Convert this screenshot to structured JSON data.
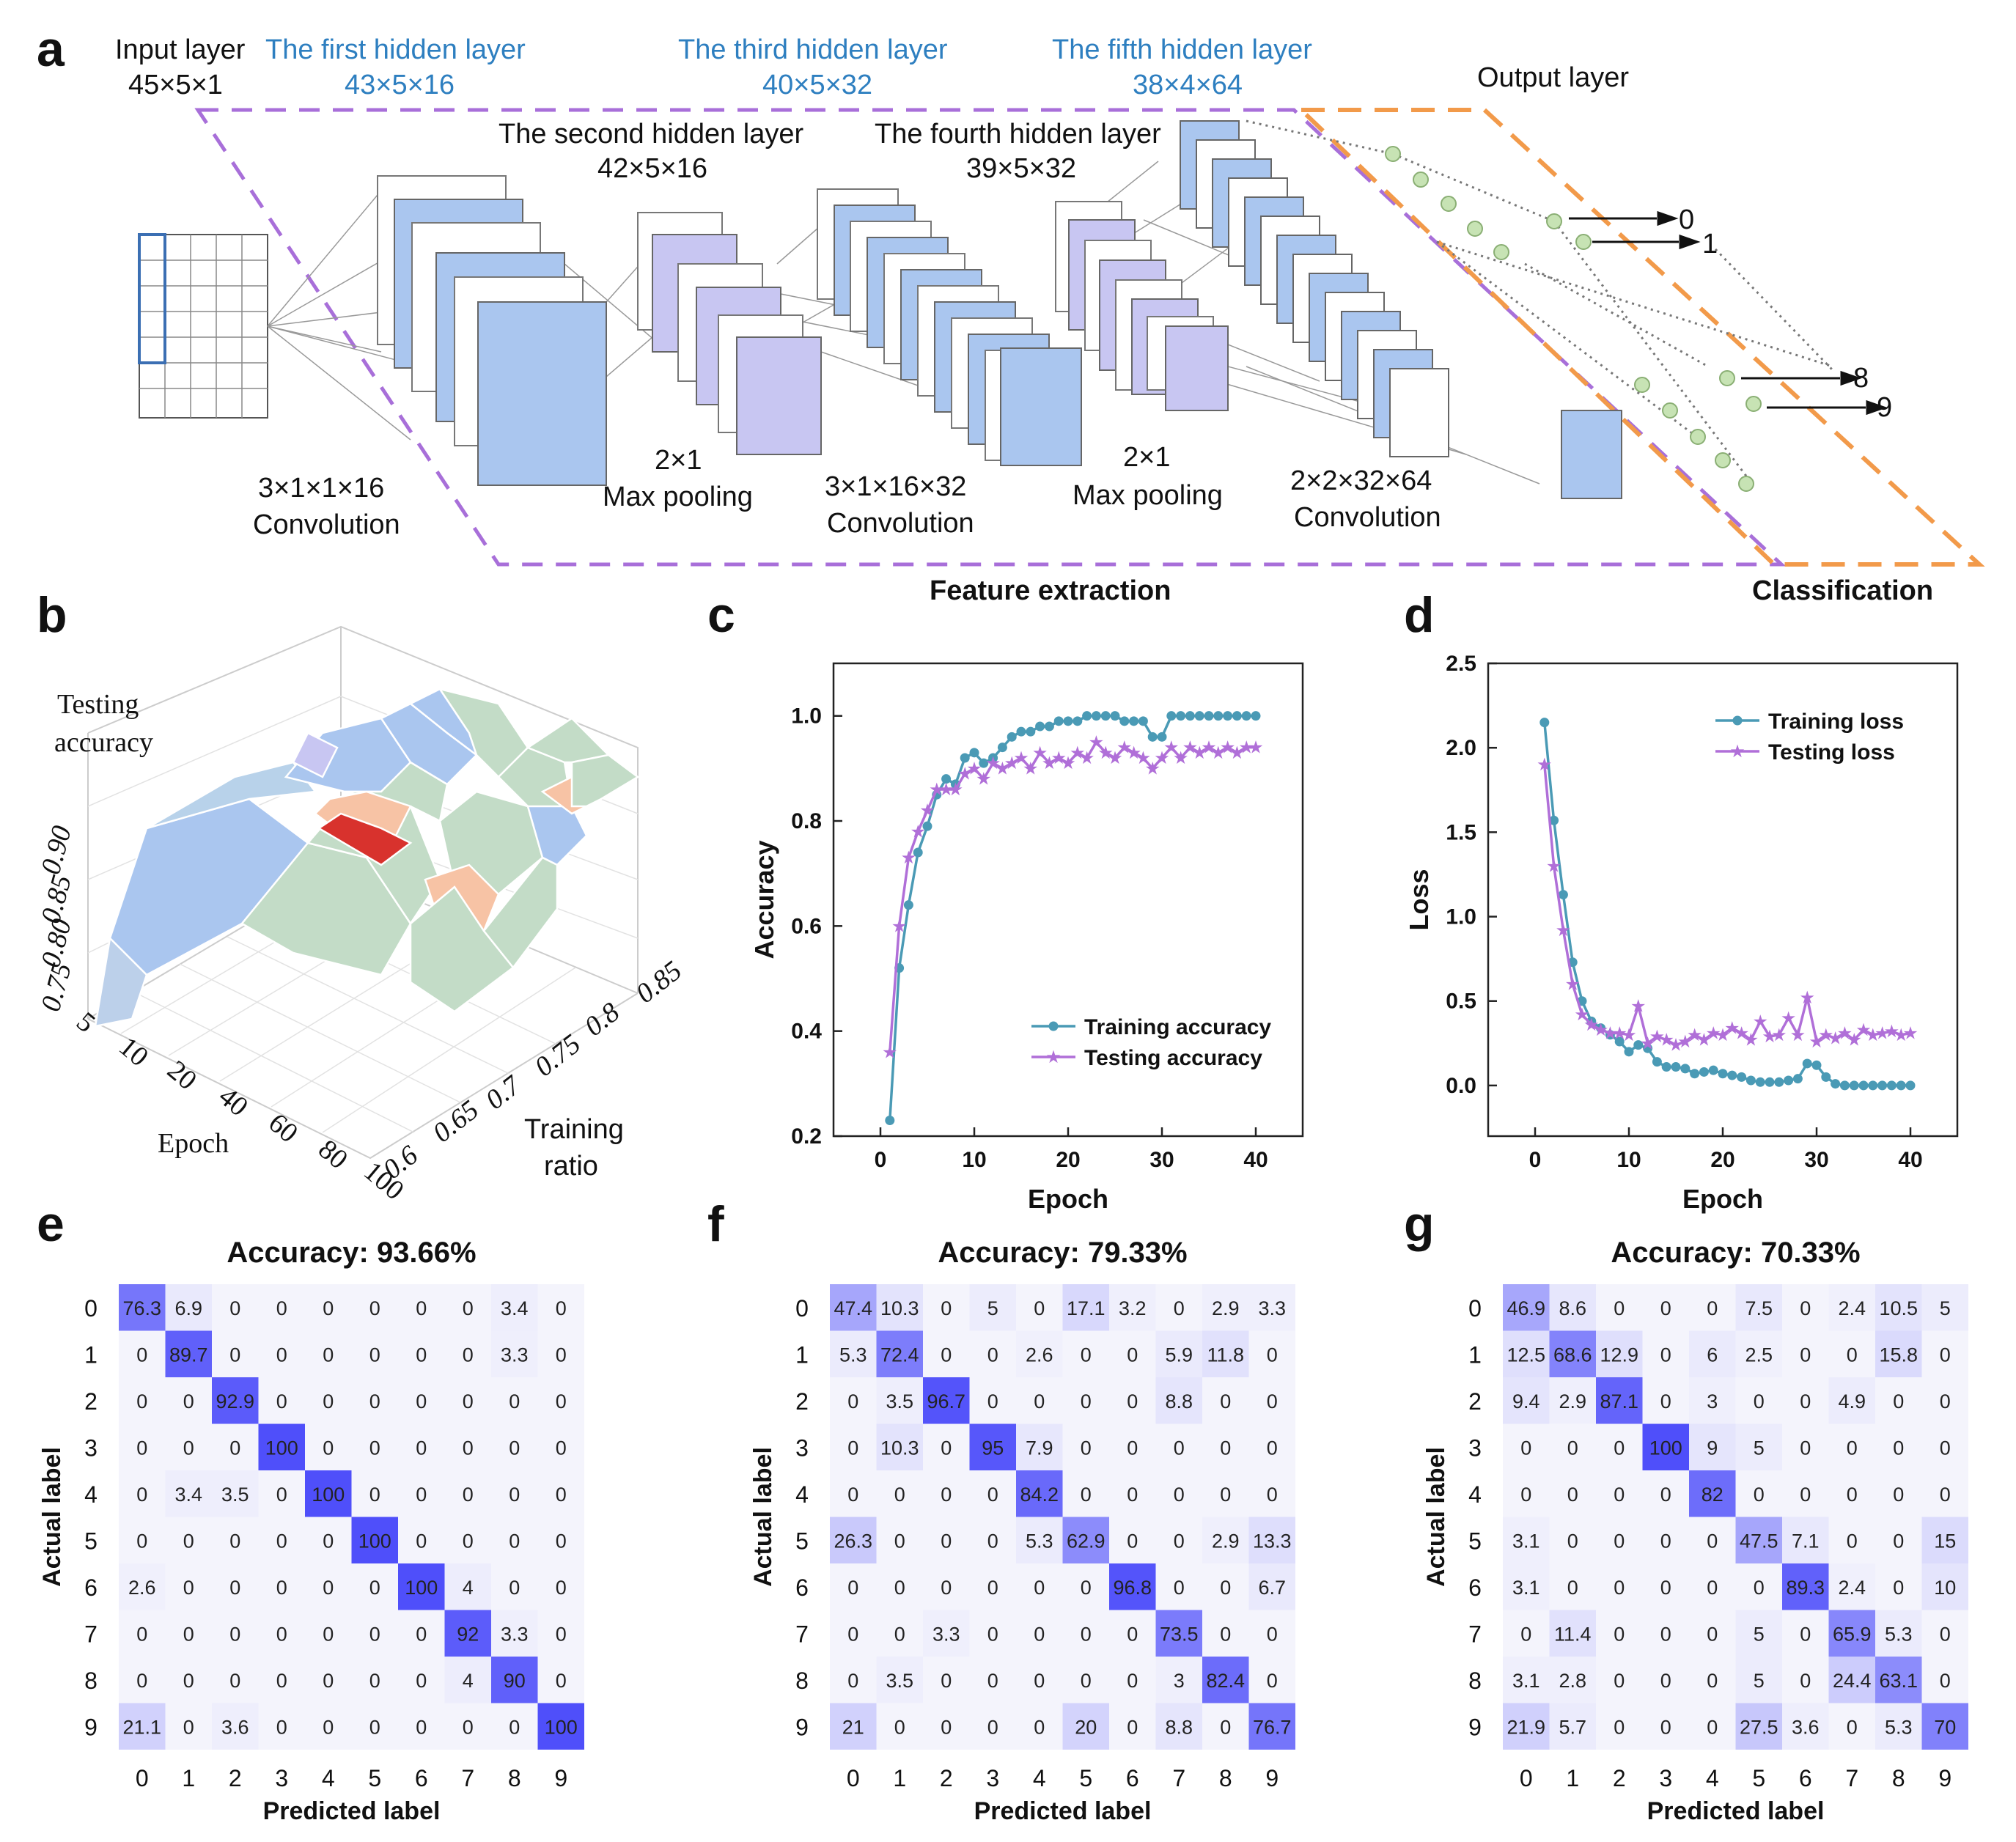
{
  "panel_letters": {
    "a": "a",
    "b": "b",
    "c": "c",
    "d": "d",
    "e": "e",
    "f": "f",
    "g": "g"
  },
  "panel_a": {
    "input_layer": {
      "name": "Input layer",
      "dims": "45×5×1"
    },
    "hidden1": {
      "name": "The first hidden layer",
      "dims": "43×5×16"
    },
    "hidden2": {
      "name": "The second hidden layer",
      "dims": "42×5×16"
    },
    "hidden3": {
      "name": "The third hidden layer",
      "dims": "40×5×32"
    },
    "hidden4": {
      "name": "The fourth hidden layer",
      "dims": "39×5×32"
    },
    "hidden5": {
      "name": "The fifth hidden layer",
      "dims": "38×4×64"
    },
    "output_layer": "Output layer",
    "op1": {
      "kernel": "3×1×1×16",
      "op": "Convolution"
    },
    "op2": {
      "kernel": "2×1",
      "op": "Max pooling"
    },
    "op3": {
      "kernel": "3×1×16×32",
      "op": "Convolution"
    },
    "op4": {
      "kernel": "2×1",
      "op": "Max pooling"
    },
    "op5": {
      "kernel": "2×2×32×64",
      "op": "Convolution"
    },
    "outputs": [
      "0",
      "1",
      "8",
      "9"
    ],
    "feature_extraction": "Feature extraction",
    "classification": "Classification",
    "colors": {
      "blue": "#aac6ef",
      "lavender": "#c8c6f2",
      "purple_dash": "#a86fd9",
      "orange_dash": "#f29a4a",
      "node": "#c7e3b4",
      "accent_text": "#2e7fc0"
    }
  },
  "panel_b": {
    "zlabel_1": "Testing",
    "zlabel_2": "accuracy",
    "z_ticks": [
      "0.90",
      "0.85",
      "0.80",
      "0.75"
    ],
    "x_label": "Epoch",
    "x_ticks": [
      "5",
      "10",
      "20",
      "40",
      "60",
      "80",
      "100"
    ],
    "y_label_1": "Training",
    "y_label_2": "ratio",
    "y_ticks": [
      "0.6",
      "0.65",
      "0.7",
      "0.75",
      "0.8",
      "0.85"
    ]
  },
  "chart_data": [
    {
      "id": "c",
      "type": "line",
      "xlabel": "Epoch",
      "ylabel": "Accuracy",
      "xlim": [
        -5,
        45
      ],
      "ylim": [
        0.2,
        1.1
      ],
      "xticks": [
        0,
        10,
        20,
        30,
        40
      ],
      "yticks": [
        0.2,
        0.4,
        0.6,
        0.8,
        1.0
      ],
      "ytick_labels": [
        "0.2",
        "0.4",
        "0.6",
        "0.8",
        "1.0"
      ],
      "legend_position": "bottom-right",
      "x": [
        1,
        2,
        3,
        4,
        5,
        6,
        7,
        8,
        9,
        10,
        11,
        12,
        13,
        14,
        15,
        16,
        17,
        18,
        19,
        20,
        21,
        22,
        23,
        24,
        25,
        26,
        27,
        28,
        29,
        30,
        31,
        32,
        33,
        34,
        35,
        36,
        37,
        38,
        39,
        40
      ],
      "series": [
        {
          "name": "Training accuracy",
          "color": "#4a9ab5",
          "marker": "circle",
          "values": [
            0.23,
            0.52,
            0.64,
            0.74,
            0.79,
            0.85,
            0.88,
            0.87,
            0.92,
            0.93,
            0.91,
            0.92,
            0.94,
            0.96,
            0.97,
            0.97,
            0.98,
            0.98,
            0.99,
            0.99,
            0.99,
            1.0,
            1.0,
            1.0,
            1.0,
            0.99,
            0.99,
            0.99,
            0.96,
            0.96,
            1.0,
            1.0,
            1.0,
            1.0,
            1.0,
            1.0,
            1.0,
            1.0,
            1.0,
            1.0
          ]
        },
        {
          "name": "Testing accuracy",
          "color": "#b06fd8",
          "marker": "star",
          "values": [
            0.36,
            0.6,
            0.73,
            0.78,
            0.82,
            0.86,
            0.86,
            0.86,
            0.89,
            0.9,
            0.88,
            0.91,
            0.9,
            0.91,
            0.92,
            0.9,
            0.93,
            0.91,
            0.92,
            0.91,
            0.93,
            0.92,
            0.95,
            0.93,
            0.92,
            0.94,
            0.93,
            0.92,
            0.9,
            0.92,
            0.94,
            0.92,
            0.94,
            0.93,
            0.94,
            0.93,
            0.94,
            0.93,
            0.94,
            0.94
          ]
        }
      ]
    },
    {
      "id": "d",
      "type": "line",
      "xlabel": "Epoch",
      "ylabel": "Loss",
      "xlim": [
        -5,
        45
      ],
      "ylim": [
        -0.3,
        2.5
      ],
      "xticks": [
        0,
        10,
        20,
        30,
        40
      ],
      "yticks": [
        0.0,
        0.5,
        1.0,
        1.5,
        2.0,
        2.5
      ],
      "ytick_labels": [
        "0.0",
        "0.5",
        "1.0",
        "1.5",
        "2.0",
        "2.5"
      ],
      "legend_position": "top-right",
      "x": [
        1,
        2,
        3,
        4,
        5,
        6,
        7,
        8,
        9,
        10,
        11,
        12,
        13,
        14,
        15,
        16,
        17,
        18,
        19,
        20,
        21,
        22,
        23,
        24,
        25,
        26,
        27,
        28,
        29,
        30,
        31,
        32,
        33,
        34,
        35,
        36,
        37,
        38,
        39,
        40
      ],
      "series": [
        {
          "name": "Training loss",
          "color": "#4a9ab5",
          "marker": "circle",
          "values": [
            2.15,
            1.57,
            1.13,
            0.73,
            0.5,
            0.38,
            0.34,
            0.3,
            0.26,
            0.2,
            0.24,
            0.22,
            0.14,
            0.11,
            0.11,
            0.1,
            0.07,
            0.08,
            0.09,
            0.07,
            0.06,
            0.05,
            0.03,
            0.02,
            0.02,
            0.02,
            0.03,
            0.04,
            0.13,
            0.12,
            0.05,
            0.01,
            0.0,
            0.0,
            0.0,
            0.0,
            0.0,
            0.0,
            0.0,
            0.0
          ]
        },
        {
          "name": "Testing loss",
          "color": "#b06fd8",
          "marker": "star",
          "values": [
            1.9,
            1.3,
            0.92,
            0.6,
            0.42,
            0.36,
            0.33,
            0.31,
            0.31,
            0.3,
            0.47,
            0.25,
            0.29,
            0.27,
            0.24,
            0.26,
            0.3,
            0.27,
            0.31,
            0.3,
            0.34,
            0.31,
            0.27,
            0.38,
            0.29,
            0.3,
            0.4,
            0.3,
            0.52,
            0.26,
            0.3,
            0.28,
            0.31,
            0.27,
            0.33,
            0.3,
            0.31,
            0.32,
            0.3,
            0.31
          ]
        }
      ]
    },
    {
      "id": "e",
      "type": "heatmap",
      "title": "Accuracy: 93.66%",
      "xlabel": "Predicted label",
      "ylabel": "Actual label",
      "labels": [
        "0",
        "1",
        "2",
        "3",
        "4",
        "5",
        "6",
        "7",
        "8",
        "9"
      ],
      "cells": [
        [
          "76.3",
          "6.9",
          "0",
          "0",
          "0",
          "0",
          "0",
          "0",
          "3.4",
          "0"
        ],
        [
          "0",
          "89.7",
          "0",
          "0",
          "0",
          "0",
          "0",
          "0",
          "3.3",
          "0"
        ],
        [
          "0",
          "0",
          "92.9",
          "0",
          "0",
          "0",
          "0",
          "0",
          "0",
          "0"
        ],
        [
          "0",
          "0",
          "0",
          "100",
          "0",
          "0",
          "0",
          "0",
          "0",
          "0"
        ],
        [
          "0",
          "3.4",
          "3.5",
          "0",
          "100",
          "0",
          "0",
          "0",
          "0",
          "0"
        ],
        [
          "0",
          "0",
          "0",
          "0",
          "0",
          "100",
          "0",
          "0",
          "0",
          "0"
        ],
        [
          "2.6",
          "0",
          "0",
          "0",
          "0",
          "0",
          "100",
          "4",
          "0",
          "0"
        ],
        [
          "0",
          "0",
          "0",
          "0",
          "0",
          "0",
          "0",
          "92",
          "3.3",
          "0"
        ],
        [
          "0",
          "0",
          "0",
          "0",
          "0",
          "0",
          "0",
          "4",
          "90",
          "0"
        ],
        [
          "21.1",
          "0",
          "3.6",
          "0",
          "0",
          "0",
          "0",
          "0",
          "0",
          "100"
        ]
      ]
    },
    {
      "id": "f",
      "type": "heatmap",
      "title": "Accuracy: 79.33%",
      "xlabel": "Predicted label",
      "ylabel": "Actual label",
      "labels": [
        "0",
        "1",
        "2",
        "3",
        "4",
        "5",
        "6",
        "7",
        "8",
        "9"
      ],
      "cells": [
        [
          "47.4",
          "10.3",
          "0",
          "5",
          "0",
          "17.1",
          "3.2",
          "0",
          "2.9",
          "3.3"
        ],
        [
          "5.3",
          "72.4",
          "0",
          "0",
          "2.6",
          "0",
          "0",
          "5.9",
          "11.8",
          "0"
        ],
        [
          "0",
          "3.5",
          "96.7",
          "0",
          "0",
          "0",
          "0",
          "8.8",
          "0",
          "0"
        ],
        [
          "0",
          "10.3",
          "0",
          "95",
          "7.9",
          "0",
          "0",
          "0",
          "0",
          "0"
        ],
        [
          "0",
          "0",
          "0",
          "0",
          "84.2",
          "0",
          "0",
          "0",
          "0",
          "0"
        ],
        [
          "26.3",
          "0",
          "0",
          "0",
          "5.3",
          "62.9",
          "0",
          "0",
          "2.9",
          "13.3"
        ],
        [
          "0",
          "0",
          "0",
          "0",
          "0",
          "0",
          "96.8",
          "0",
          "0",
          "6.7"
        ],
        [
          "0",
          "0",
          "3.3",
          "0",
          "0",
          "0",
          "0",
          "73.5",
          "0",
          "0"
        ],
        [
          "0",
          "3.5",
          "0",
          "0",
          "0",
          "0",
          "0",
          "3",
          "82.4",
          "0"
        ],
        [
          "21",
          "0",
          "0",
          "0",
          "0",
          "20",
          "0",
          "8.8",
          "0",
          "76.7"
        ]
      ]
    },
    {
      "id": "g",
      "type": "heatmap",
      "title": "Accuracy: 70.33%",
      "xlabel": "Predicted label",
      "ylabel": "Actual label",
      "labels": [
        "0",
        "1",
        "2",
        "3",
        "4",
        "5",
        "6",
        "7",
        "8",
        "9"
      ],
      "cells": [
        [
          "46.9",
          "8.6",
          "0",
          "0",
          "0",
          "7.5",
          "0",
          "2.4",
          "10.5",
          "5"
        ],
        [
          "12.5",
          "68.6",
          "12.9",
          "0",
          "6",
          "2.5",
          "0",
          "0",
          "15.8",
          "0"
        ],
        [
          "9.4",
          "2.9",
          "87.1",
          "0",
          "3",
          "0",
          "0",
          "4.9",
          "0",
          "0"
        ],
        [
          "0",
          "0",
          "0",
          "100",
          "9",
          "5",
          "0",
          "0",
          "0",
          "0"
        ],
        [
          "0",
          "0",
          "0",
          "0",
          "82",
          "0",
          "0",
          "0",
          "0",
          "0"
        ],
        [
          "3.1",
          "0",
          "0",
          "0",
          "0",
          "47.5",
          "7.1",
          "0",
          "0",
          "15"
        ],
        [
          "3.1",
          "0",
          "0",
          "0",
          "0",
          "0",
          "89.3",
          "2.4",
          "0",
          "10"
        ],
        [
          "0",
          "11.4",
          "0",
          "0",
          "0",
          "5",
          "0",
          "65.9",
          "5.3",
          "0"
        ],
        [
          "3.1",
          "2.8",
          "0",
          "0",
          "0",
          "5",
          "0",
          "24.4",
          "63.1",
          "0"
        ],
        [
          "21.9",
          "5.7",
          "0",
          "0",
          "0",
          "27.5",
          "3.6",
          "0",
          "5.3",
          "70"
        ]
      ]
    }
  ]
}
